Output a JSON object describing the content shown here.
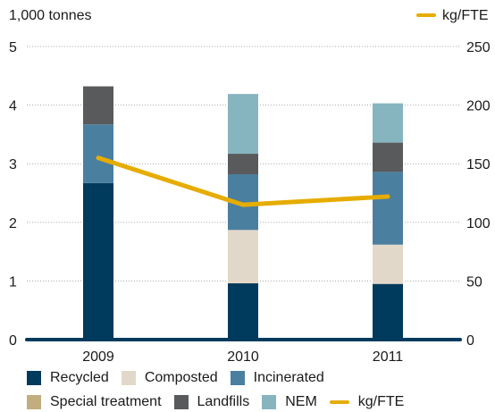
{
  "chart_data": {
    "type": "bar",
    "stacked": true,
    "title": "",
    "left_axis_label": "1,000 tonnes",
    "right_axis_label": "kg/FTE",
    "categories": [
      "2009",
      "2010",
      "2011"
    ],
    "left_ylim": [
      0,
      5
    ],
    "right_ylim": [
      0,
      250
    ],
    "left_ticks": [
      "0",
      "1",
      "2",
      "3",
      "4",
      "5"
    ],
    "right_ticks": [
      "0",
      "50",
      "100",
      "150",
      "200",
      "250"
    ],
    "grid": "dotted horizontal",
    "series": [
      {
        "name": "Recycled",
        "color": "#003a5d",
        "values": [
          2.67,
          0.96,
          0.95
        ]
      },
      {
        "name": "Composted",
        "color": "#e2d8c9",
        "values": [
          0,
          0.91,
          0.67
        ]
      },
      {
        "name": "Incinerated",
        "color": "#4a7fa0",
        "values": [
          1.0,
          0.95,
          1.24
        ]
      },
      {
        "name": "Special treatment",
        "color": "#c2ad7e",
        "values": [
          0,
          0,
          0
        ]
      },
      {
        "name": "Landfills",
        "color": "#595a5c",
        "values": [
          0.65,
          0.35,
          0.5
        ]
      },
      {
        "name": "NEM",
        "color": "#87b5bf",
        "values": [
          0,
          1.02,
          0.67
        ]
      }
    ],
    "line_series": {
      "name": "kg/FTE",
      "color": "#e6ac00",
      "axis": "right",
      "values": [
        155,
        115,
        122
      ]
    },
    "legend": {
      "row1": [
        "Recycled",
        "Composted",
        "Incinerated"
      ],
      "row2": [
        "Special treatment",
        "Landfills",
        "NEM",
        "kg/FTE"
      ]
    }
  }
}
